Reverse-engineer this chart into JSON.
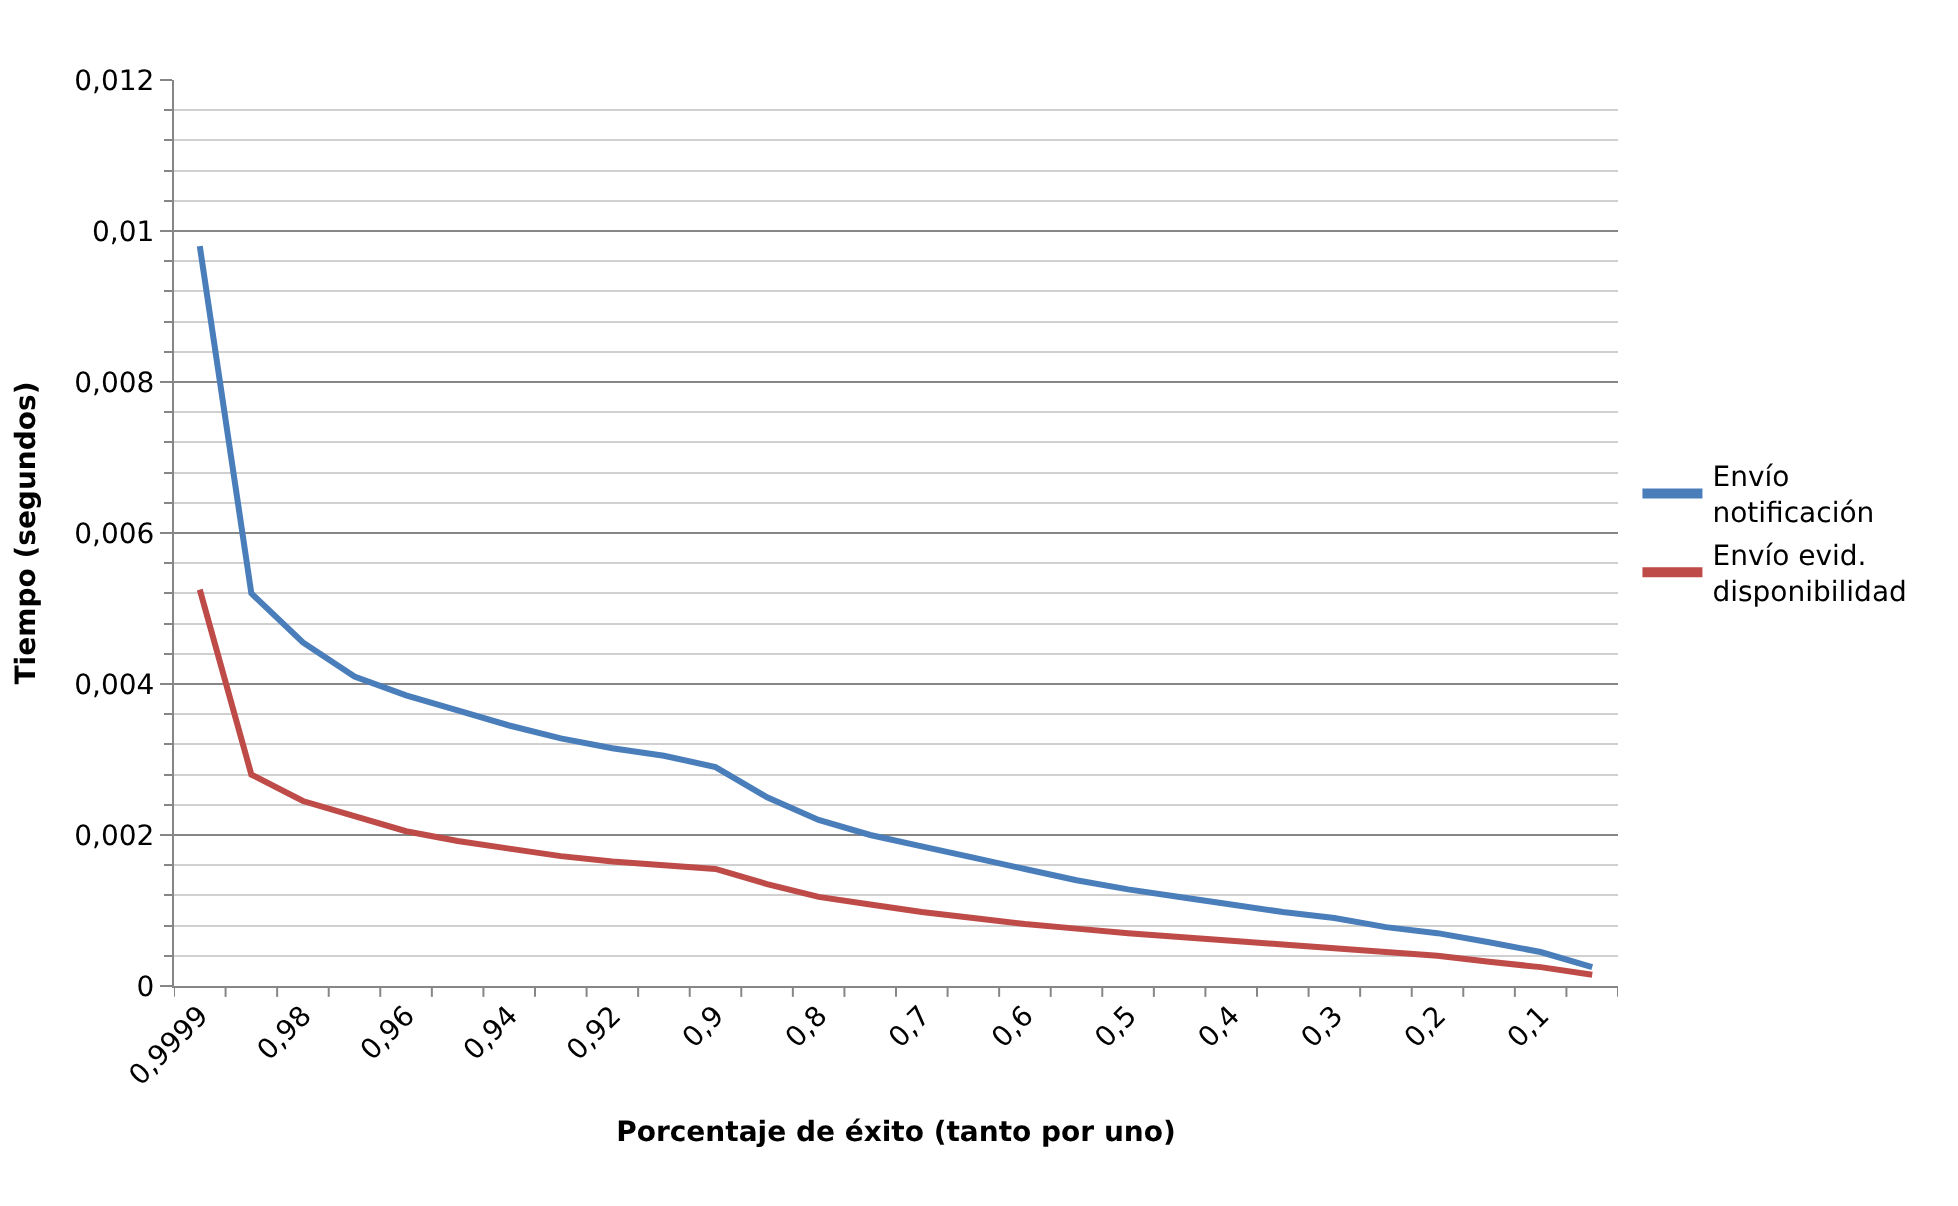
{
  "chart_data": {
    "type": "line",
    "xlabel": "Porcentaje de éxito (tanto por uno)",
    "ylabel": "Tiempo (segundos)",
    "categories": [
      "0,9999",
      null,
      "0,98",
      null,
      "0,96",
      null,
      "0,94",
      null,
      "0,92",
      null,
      "0,9",
      null,
      "0,8",
      null,
      "0,7",
      null,
      "0,6",
      null,
      "0,5",
      null,
      "0,4",
      null,
      "0,3",
      null,
      "0,2",
      null,
      "0,1",
      null
    ],
    "series": [
      {
        "name": "Envío notificación",
        "color": "#4a7ebb",
        "values": [
          0.0098,
          0.0052,
          0.00455,
          0.0041,
          0.00385,
          0.00365,
          0.00345,
          0.00328,
          0.00315,
          0.00305,
          0.0029,
          0.0025,
          0.0022,
          0.002,
          0.00185,
          0.0017,
          0.00155,
          0.0014,
          0.00128,
          0.00118,
          0.00108,
          0.00098,
          0.0009,
          0.00078,
          0.0007,
          0.00058,
          0.00045,
          0.00025
        ]
      },
      {
        "name": "Envío evid. disponibilidad",
        "color": "#be4b48",
        "values": [
          0.00525,
          0.0028,
          0.00245,
          0.00225,
          0.00205,
          0.00192,
          0.00182,
          0.00172,
          0.00165,
          0.0016,
          0.00155,
          0.00135,
          0.00118,
          0.00108,
          0.00098,
          0.0009,
          0.00082,
          0.00076,
          0.0007,
          0.00065,
          0.0006,
          0.00055,
          0.0005,
          0.00045,
          0.0004,
          0.00032,
          0.00025,
          0.00015
        ]
      }
    ],
    "ylim": [
      0,
      0.012
    ],
    "yticks": [
      {
        "value": 0,
        "label": "0"
      },
      {
        "value": 0.002,
        "label": "0,002"
      },
      {
        "value": 0.004,
        "label": "0,004"
      },
      {
        "value": 0.006,
        "label": "0,006"
      },
      {
        "value": 0.008,
        "label": "0,008"
      },
      {
        "value": 0.01,
        "label": "0,01"
      },
      {
        "value": 0.012,
        "label": "0,012"
      }
    ],
    "grid": "y",
    "legend": "right",
    "marker": "none",
    "line_style": "solid"
  }
}
